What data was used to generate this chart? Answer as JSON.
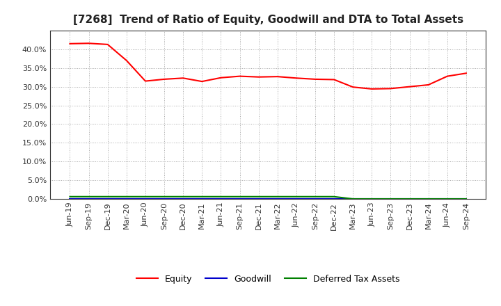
{
  "title": "[7268]  Trend of Ratio of Equity, Goodwill and DTA to Total Assets",
  "x_labels": [
    "Jun-19",
    "Sep-19",
    "Dec-19",
    "Mar-20",
    "Jun-20",
    "Sep-20",
    "Dec-20",
    "Mar-21",
    "Jun-21",
    "Sep-21",
    "Dec-21",
    "Mar-22",
    "Jun-22",
    "Sep-22",
    "Dec-22",
    "Mar-23",
    "Jun-23",
    "Sep-23",
    "Dec-23",
    "Mar-24",
    "Jun-24",
    "Sep-24"
  ],
  "equity": [
    0.415,
    0.416,
    0.413,
    0.37,
    0.315,
    0.32,
    0.323,
    0.314,
    0.324,
    0.328,
    0.326,
    0.327,
    0.323,
    0.32,
    0.319,
    0.299,
    0.294,
    0.295,
    0.3,
    0.305,
    0.328,
    0.336
  ],
  "goodwill": [
    0.0,
    0.0,
    0.0,
    0.0,
    0.0,
    0.0,
    0.0,
    0.0,
    0.0,
    0.0,
    0.0,
    0.0,
    0.0,
    0.0,
    0.0,
    0.0,
    0.0,
    0.0,
    0.0,
    0.0,
    0.0,
    0.0
  ],
  "dta": [
    0.006,
    0.006,
    0.006,
    0.006,
    0.006,
    0.006,
    0.006,
    0.006,
    0.006,
    0.006,
    0.006,
    0.006,
    0.006,
    0.006,
    0.006,
    0.0,
    0.0,
    0.0,
    0.0,
    0.0,
    0.0,
    0.0
  ],
  "equity_color": "#ff0000",
  "goodwill_color": "#0000cc",
  "dta_color": "#008000",
  "background_color": "#ffffff",
  "plot_bg_color": "#ffffff",
  "grid_color": "#aaaaaa",
  "ylim": [
    0.0,
    0.45
  ],
  "yticks": [
    0.0,
    0.05,
    0.1,
    0.15,
    0.2,
    0.25,
    0.3,
    0.35,
    0.4
  ],
  "title_fontsize": 11,
  "tick_fontsize": 8,
  "legend_labels": [
    "Equity",
    "Goodwill",
    "Deferred Tax Assets"
  ]
}
